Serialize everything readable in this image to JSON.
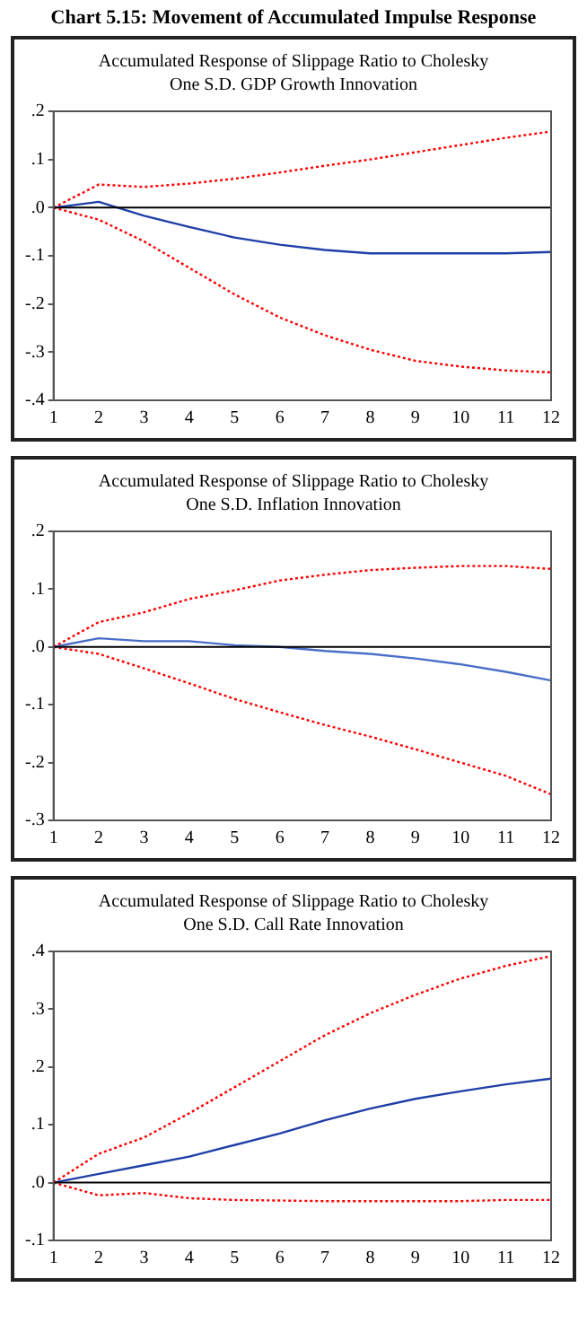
{
  "chart_data": [
    {
      "type": "line",
      "title": "Accumulated Response of Slippage Ratio to Cholesky",
      "subtitle": "One S.D. GDP Growth Innovation",
      "annotations": [
        "Chart 5.15: Movement of Accumulated Impulse Response"
      ],
      "x": [
        1,
        2,
        3,
        4,
        5,
        6,
        7,
        8,
        9,
        10,
        11,
        12
      ],
      "xlim": [
        1,
        12
      ],
      "xticks": [
        1,
        2,
        3,
        4,
        5,
        6,
        7,
        8,
        9,
        10,
        11,
        12
      ],
      "ylim": [
        -0.4,
        0.2
      ],
      "yticks": [
        {
          "value": 0.2,
          "label": ".2"
        },
        {
          "value": 0.1,
          "label": ".1"
        },
        {
          "value": 0,
          "label": ".0"
        },
        {
          "value": -0.1,
          "label": "-.1"
        },
        {
          "value": -0.2,
          "label": "-.2"
        },
        {
          "value": -0.3,
          "label": "-.3"
        },
        {
          "value": -0.4,
          "label": "-.4"
        }
      ],
      "grid": false,
      "legend": false,
      "ref_lines": [
        {
          "axis": "y",
          "value": 0,
          "color": "#000000"
        }
      ],
      "series": [
        {
          "color": "#ff0000",
          "line_style": "dotted",
          "values": [
            0,
            0.048,
            0.043,
            0.05,
            0.06,
            0.073,
            0.087,
            0.1,
            0.115,
            0.13,
            0.145,
            0.158
          ]
        },
        {
          "color": "#1f3fa8",
          "line_style": "solid",
          "values": [
            0,
            0.012,
            -0.017,
            -0.04,
            -0.062,
            -0.077,
            -0.088,
            -0.095,
            -0.095,
            -0.095,
            -0.095,
            -0.092
          ]
        },
        {
          "color": "#ff0000",
          "line_style": "dotted",
          "values": [
            0,
            -0.025,
            -0.07,
            -0.125,
            -0.18,
            -0.228,
            -0.265,
            -0.295,
            -0.318,
            -0.33,
            -0.338,
            -0.342
          ]
        }
      ]
    },
    {
      "type": "line",
      "title": "Accumulated Response of Slippage Ratio to Cholesky",
      "subtitle": "One S.D. Inflation Innovation",
      "x": [
        1,
        2,
        3,
        4,
        5,
        6,
        7,
        8,
        9,
        10,
        11,
        12
      ],
      "xlim": [
        1,
        12
      ],
      "xticks": [
        1,
        2,
        3,
        4,
        5,
        6,
        7,
        8,
        9,
        10,
        11,
        12
      ],
      "ylim": [
        -0.3,
        0.2
      ],
      "yticks": [
        {
          "value": 0.2,
          "label": ".2"
        },
        {
          "value": 0.1,
          "label": ".1"
        },
        {
          "value": 0,
          "label": ".0"
        },
        {
          "value": -0.1,
          "label": "-.1"
        },
        {
          "value": -0.2,
          "label": "-.2"
        },
        {
          "value": -0.3,
          "label": "-.3"
        }
      ],
      "grid": false,
      "legend": false,
      "ref_lines": [
        {
          "axis": "y",
          "value": 0,
          "color": "#000000"
        }
      ],
      "series": [
        {
          "color": "#ff0000",
          "line_style": "dotted",
          "values": [
            0,
            0.043,
            0.06,
            0.083,
            0.098,
            0.115,
            0.125,
            0.133,
            0.137,
            0.14,
            0.14,
            0.135
          ]
        },
        {
          "color": "#4a6fc8",
          "line_style": "solid",
          "values": [
            0,
            0.015,
            0.01,
            0.01,
            0.003,
            0,
            -0.007,
            -0.012,
            -0.02,
            -0.03,
            -0.043,
            -0.058
          ]
        },
        {
          "color": "#ff0000",
          "line_style": "dotted",
          "values": [
            0,
            -0.012,
            -0.037,
            -0.063,
            -0.09,
            -0.113,
            -0.135,
            -0.155,
            -0.177,
            -0.2,
            -0.223,
            -0.255
          ]
        }
      ]
    },
    {
      "type": "line",
      "title": "Accumulated Response of Slippage Ratio to Cholesky",
      "subtitle": "One S.D. Call Rate Innovation",
      "x": [
        1,
        2,
        3,
        4,
        5,
        6,
        7,
        8,
        9,
        10,
        11,
        12
      ],
      "xlim": [
        1,
        12
      ],
      "xticks": [
        1,
        2,
        3,
        4,
        5,
        6,
        7,
        8,
        9,
        10,
        11,
        12
      ],
      "ylim": [
        -0.1,
        0.4
      ],
      "yticks": [
        {
          "value": 0.4,
          "label": ".4"
        },
        {
          "value": 0.3,
          "label": ".3"
        },
        {
          "value": 0.2,
          "label": ".2"
        },
        {
          "value": 0.1,
          "label": ".1"
        },
        {
          "value": 0,
          "label": ".0"
        },
        {
          "value": -0.1,
          "label": "-.1"
        }
      ],
      "grid": false,
      "legend": false,
      "ref_lines": [
        {
          "axis": "y",
          "value": 0,
          "color": "#000000"
        }
      ],
      "series": [
        {
          "color": "#ff0000",
          "line_style": "dotted",
          "values": [
            0,
            0.05,
            0.078,
            0.12,
            0.165,
            0.21,
            0.255,
            0.293,
            0.325,
            0.353,
            0.375,
            0.392
          ]
        },
        {
          "color": "#1f3fa8",
          "line_style": "solid",
          "values": [
            0,
            0.015,
            0.03,
            0.045,
            0.065,
            0.085,
            0.108,
            0.128,
            0.145,
            0.158,
            0.17,
            0.18
          ]
        },
        {
          "color": "#ff0000",
          "line_style": "dotted",
          "values": [
            0,
            -0.022,
            -0.018,
            -0.027,
            -0.03,
            -0.031,
            -0.032,
            -0.032,
            -0.032,
            -0.032,
            -0.03,
            -0.03
          ]
        }
      ]
    }
  ]
}
